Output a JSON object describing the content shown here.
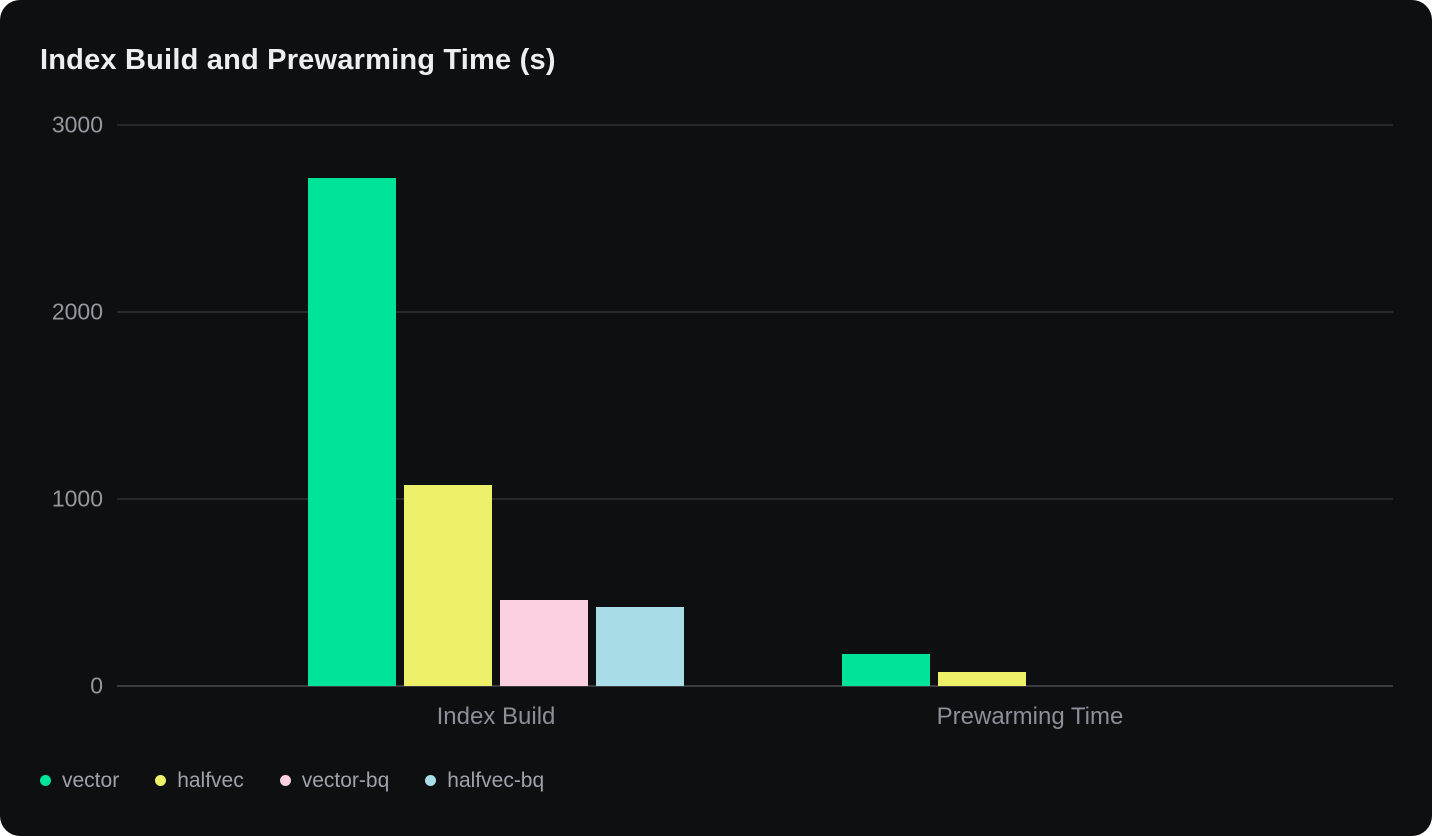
{
  "title": "Index Build and Prewarming Time (s)",
  "colors": {
    "page_background": "#FFFFFF",
    "card_background": "#0E0F11",
    "gridline": "#27282B",
    "zero_axis_line": "#3A3B3F",
    "title_text": "#ECEEF1",
    "ytick_text": "#96979F",
    "category_text": "#8B8F98",
    "legend_text": "#9EA2AA"
  },
  "chart_data": {
    "type": "bar",
    "title": "Index Build and Prewarming Time (s)",
    "categories": [
      "Index Build",
      "Prewarming Time"
    ],
    "series": [
      {
        "name": "vector",
        "color": "#00E49A",
        "values": [
          2715,
          170
        ]
      },
      {
        "name": "halfvec",
        "color": "#EEF069",
        "values": [
          1075,
          75
        ]
      },
      {
        "name": "vector-bq",
        "color": "#FBD0E0",
        "values": [
          460,
          0
        ]
      },
      {
        "name": "halfvec-bq",
        "color": "#A9DEE9",
        "values": [
          425,
          0
        ]
      }
    ],
    "ylim": [
      0,
      3000
    ],
    "yticks": [
      0,
      1000,
      2000,
      3000
    ],
    "ytick_labels": [
      "0",
      "1000",
      "2000",
      "3000"
    ],
    "grid": true,
    "legend_position": "bottom-left",
    "xlabel": "",
    "ylabel": ""
  }
}
